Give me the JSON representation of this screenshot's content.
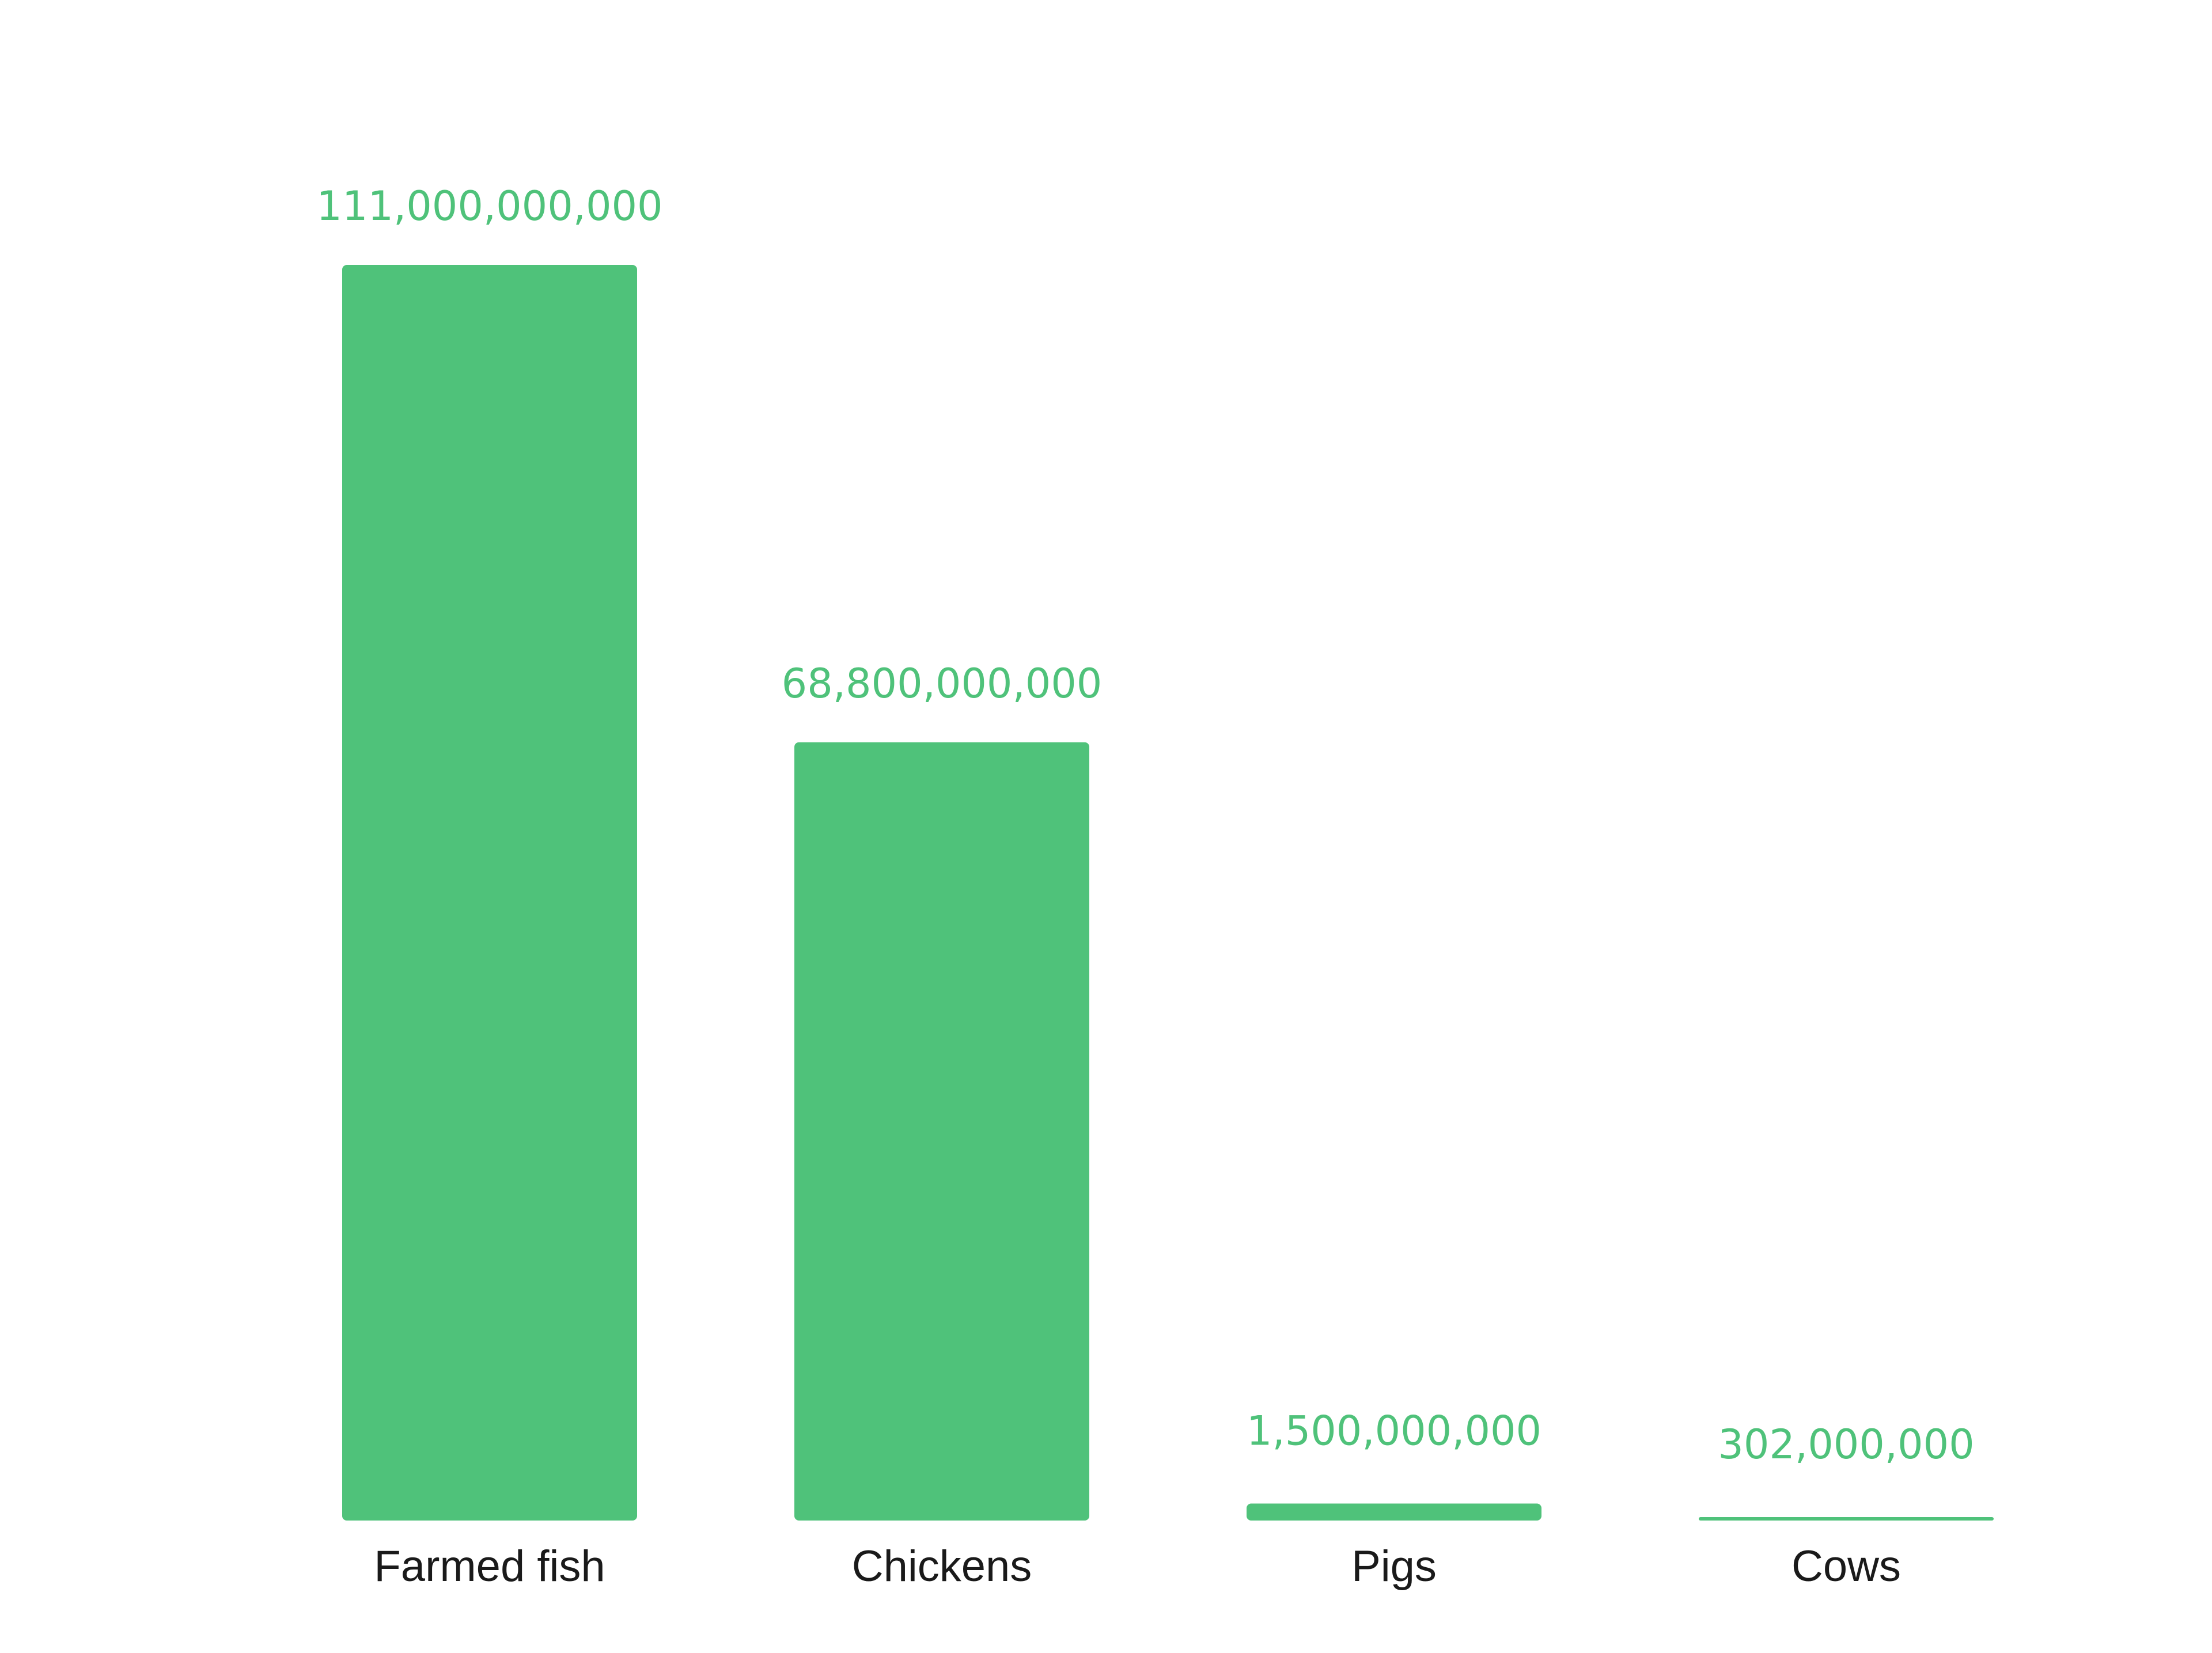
{
  "chart_data": {
    "type": "bar",
    "categories": [
      "Farmed fish",
      "Chickens",
      "Pigs",
      "Cows"
    ],
    "values": [
      111000000000,
      68800000000,
      1500000000,
      302000000
    ],
    "value_labels": [
      "111,000,000,000",
      "68,800,000,000",
      "1,500,000,000",
      "302,000,000"
    ],
    "title": "",
    "xlabel": "",
    "ylabel": "",
    "ylim": [
      0,
      111000000000
    ],
    "grid": false,
    "legend": "none",
    "bar_color": "#4fc27a",
    "label_color": "#4fc27a",
    "category_color": "#1a1a1a"
  }
}
